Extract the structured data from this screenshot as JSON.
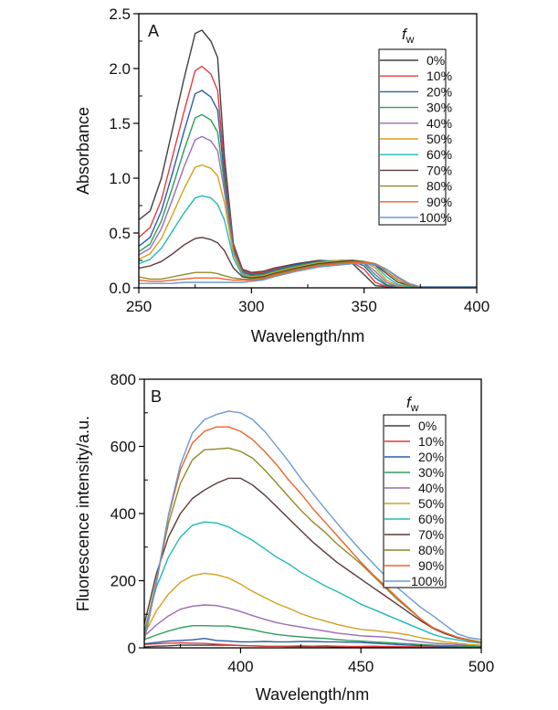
{
  "chart_data": [
    {
      "id": "A",
      "type": "line",
      "panel_label": "A",
      "xlabel": "Wavelength/nm",
      "ylabel": "Absorbance",
      "xlim": [
        250,
        400
      ],
      "ylim": [
        0.0,
        2.5
      ],
      "xticks": [
        250,
        300,
        350,
        400
      ],
      "xtick_labels": [
        "250",
        "300",
        "350",
        "400"
      ],
      "yticks": [
        0.0,
        0.5,
        1.0,
        1.5,
        2.0,
        2.5
      ],
      "ytick_labels": [
        "0.0",
        "0.5",
        "1.0",
        "1.5",
        "2.0",
        "2.5"
      ],
      "grid": false,
      "legend": {
        "title": "f",
        "title_sub": "w",
        "placement": "top-right"
      },
      "x": [
        250,
        255,
        260,
        265,
        270,
        275,
        278,
        282,
        285,
        288,
        292,
        296,
        300,
        305,
        310,
        320,
        330,
        340,
        345,
        350,
        355,
        360,
        365,
        370,
        375,
        380,
        390,
        400
      ],
      "series": [
        {
          "name": "0%",
          "color": "#404040",
          "values": [
            0.62,
            0.7,
            1.0,
            1.45,
            1.9,
            2.32,
            2.35,
            2.25,
            2.1,
            1.2,
            0.4,
            0.17,
            0.14,
            0.15,
            0.18,
            0.22,
            0.25,
            0.24,
            0.22,
            0.12,
            0.02,
            0.01,
            0.01,
            0.01,
            0.01,
            0.01,
            0.01,
            0.01
          ]
        },
        {
          "name": "10%",
          "color": "#e03c3c",
          "values": [
            0.46,
            0.55,
            0.8,
            1.2,
            1.6,
            1.98,
            2.02,
            1.95,
            1.8,
            1.1,
            0.38,
            0.16,
            0.13,
            0.14,
            0.17,
            0.21,
            0.24,
            0.24,
            0.23,
            0.17,
            0.05,
            0.01,
            0.01,
            0.01,
            0.01,
            0.01,
            0.01,
            0.01
          ]
        },
        {
          "name": "20%",
          "color": "#2f5fa8",
          "values": [
            0.38,
            0.46,
            0.7,
            1.05,
            1.42,
            1.77,
            1.8,
            1.74,
            1.62,
            1.02,
            0.36,
            0.15,
            0.12,
            0.13,
            0.16,
            0.21,
            0.24,
            0.25,
            0.24,
            0.2,
            0.09,
            0.02,
            0.01,
            0.01,
            0.01,
            0.01,
            0.01,
            0.01
          ]
        },
        {
          "name": "30%",
          "color": "#2e9e5a",
          "values": [
            0.33,
            0.4,
            0.61,
            0.92,
            1.25,
            1.55,
            1.58,
            1.53,
            1.42,
            0.95,
            0.34,
            0.14,
            0.11,
            0.12,
            0.15,
            0.2,
            0.24,
            0.25,
            0.25,
            0.22,
            0.12,
            0.03,
            0.01,
            0.01,
            0.01,
            0.01,
            0.01,
            0.01
          ]
        },
        {
          "name": "40%",
          "color": "#9b6bb5",
          "values": [
            0.3,
            0.36,
            0.54,
            0.81,
            1.1,
            1.35,
            1.38,
            1.34,
            1.25,
            0.88,
            0.33,
            0.13,
            0.1,
            0.11,
            0.14,
            0.19,
            0.23,
            0.25,
            0.25,
            0.23,
            0.15,
            0.05,
            0.01,
            0.01,
            0.01,
            0.01,
            0.01,
            0.01
          ]
        },
        {
          "name": "50%",
          "color": "#d4a01e",
          "values": [
            0.26,
            0.31,
            0.45,
            0.67,
            0.9,
            1.1,
            1.12,
            1.09,
            1.02,
            0.78,
            0.31,
            0.12,
            0.1,
            0.11,
            0.14,
            0.19,
            0.23,
            0.25,
            0.25,
            0.24,
            0.18,
            0.07,
            0.02,
            0.01,
            0.01,
            0.01,
            0.01,
            0.01
          ]
        },
        {
          "name": "60%",
          "color": "#22b8b8",
          "values": [
            0.22,
            0.26,
            0.36,
            0.52,
            0.68,
            0.82,
            0.84,
            0.82,
            0.76,
            0.62,
            0.27,
            0.11,
            0.09,
            0.1,
            0.13,
            0.18,
            0.22,
            0.24,
            0.25,
            0.24,
            0.2,
            0.1,
            0.03,
            0.01,
            0.01,
            0.01,
            0.01,
            0.01
          ]
        },
        {
          "name": "70%",
          "color": "#5a3a3a",
          "values": [
            0.18,
            0.2,
            0.24,
            0.31,
            0.39,
            0.45,
            0.46,
            0.44,
            0.41,
            0.34,
            0.18,
            0.1,
            0.09,
            0.1,
            0.13,
            0.18,
            0.22,
            0.24,
            0.25,
            0.24,
            0.21,
            0.13,
            0.05,
            0.02,
            0.01,
            0.01,
            0.01,
            0.01
          ]
        },
        {
          "name": "80%",
          "color": "#8c8c2a",
          "values": [
            0.1,
            0.08,
            0.08,
            0.1,
            0.12,
            0.14,
            0.14,
            0.14,
            0.13,
            0.11,
            0.09,
            0.08,
            0.08,
            0.09,
            0.12,
            0.17,
            0.21,
            0.23,
            0.24,
            0.24,
            0.22,
            0.15,
            0.07,
            0.02,
            0.01,
            0.01,
            0.01,
            0.01
          ]
        },
        {
          "name": "90%",
          "color": "#f0622a",
          "values": [
            0.07,
            0.06,
            0.06,
            0.07,
            0.08,
            0.09,
            0.09,
            0.09,
            0.09,
            0.08,
            0.07,
            0.07,
            0.07,
            0.08,
            0.11,
            0.16,
            0.2,
            0.22,
            0.23,
            0.23,
            0.22,
            0.17,
            0.09,
            0.03,
            0.01,
            0.01,
            0.01,
            0.01
          ]
        },
        {
          "name": "100%",
          "color": "#6a9ad0",
          "values": [
            0.04,
            0.04,
            0.04,
            0.04,
            0.05,
            0.05,
            0.05,
            0.05,
            0.05,
            0.05,
            0.05,
            0.05,
            0.06,
            0.07,
            0.1,
            0.15,
            0.19,
            0.21,
            0.22,
            0.22,
            0.21,
            0.17,
            0.1,
            0.04,
            0.01,
            0.01,
            0.01,
            0.01
          ]
        }
      ]
    },
    {
      "id": "B",
      "type": "line",
      "panel_label": "B",
      "xlabel": "Wavelength/nm",
      "ylabel": "Fluorescence intensity/a.u.",
      "xlim": [
        360,
        500
      ],
      "ylim": [
        0,
        800
      ],
      "xticks": [
        400,
        450,
        500
      ],
      "xtick_labels": [
        "400",
        "450",
        "500"
      ],
      "xminor": [
        375,
        425,
        475
      ],
      "yticks": [
        0,
        200,
        400,
        600,
        800
      ],
      "ytick_labels": [
        "0",
        "200",
        "400",
        "600",
        "800"
      ],
      "grid": false,
      "legend": {
        "title": "f",
        "title_sub": "w",
        "placement": "top-right"
      },
      "x": [
        360,
        365,
        370,
        375,
        380,
        385,
        390,
        395,
        400,
        405,
        410,
        415,
        420,
        425,
        430,
        435,
        440,
        445,
        450,
        455,
        460,
        465,
        470,
        475,
        480,
        485,
        490,
        495,
        500
      ],
      "series": [
        {
          "name": "0%",
          "color": "#404040",
          "values": [
            3,
            5,
            6,
            8,
            8,
            8,
            8,
            8,
            7,
            6,
            5,
            5,
            4,
            4,
            4,
            4,
            3,
            3,
            3,
            3,
            3,
            3,
            3,
            3,
            2,
            2,
            2,
            2,
            2
          ]
        },
        {
          "name": "10%",
          "color": "#e03c3c",
          "values": [
            10,
            12,
            14,
            15,
            14,
            13,
            11,
            9,
            7,
            6,
            5,
            5,
            5,
            6,
            5,
            6,
            5,
            4,
            4,
            5,
            4,
            4,
            3,
            3,
            3,
            3,
            3,
            3,
            3
          ]
        },
        {
          "name": "20%",
          "color": "#2f5fa8",
          "values": [
            12,
            16,
            20,
            22,
            24,
            28,
            22,
            20,
            18,
            18,
            19,
            18,
            18,
            19,
            19,
            18,
            18,
            17,
            16,
            14,
            12,
            10,
            8,
            7,
            6,
            5,
            5,
            4,
            4
          ]
        },
        {
          "name": "30%",
          "color": "#2e9e5a",
          "values": [
            25,
            38,
            50,
            60,
            66,
            66,
            65,
            65,
            60,
            54,
            46,
            40,
            36,
            33,
            30,
            28,
            25,
            22,
            20,
            18,
            16,
            14,
            12,
            10,
            8,
            7,
            6,
            5,
            5
          ]
        },
        {
          "name": "40%",
          "color": "#9b6bb5",
          "values": [
            35,
            68,
            95,
            115,
            124,
            128,
            126,
            118,
            108,
            96,
            85,
            75,
            68,
            62,
            56,
            50,
            44,
            40,
            36,
            34,
            32,
            28,
            22,
            18,
            14,
            12,
            10,
            8,
            7
          ]
        },
        {
          "name": "50%",
          "color": "#d4a01e",
          "values": [
            40,
            110,
            160,
            195,
            215,
            222,
            218,
            208,
            190,
            168,
            150,
            132,
            118,
            102,
            90,
            80,
            70,
            62,
            55,
            52,
            48,
            44,
            38,
            30,
            24,
            18,
            14,
            10,
            8
          ]
        },
        {
          "name": "60%",
          "color": "#22b8b8",
          "values": [
            50,
            180,
            270,
            330,
            365,
            375,
            372,
            360,
            340,
            320,
            295,
            270,
            250,
            225,
            205,
            185,
            168,
            150,
            130,
            115,
            100,
            85,
            70,
            55,
            40,
            30,
            24,
            18,
            14
          ]
        },
        {
          "name": "70%",
          "color": "#5a3a3a",
          "values": [
            70,
            220,
            330,
            400,
            445,
            470,
            490,
            505,
            505,
            485,
            455,
            420,
            385,
            350,
            315,
            285,
            255,
            230,
            205,
            180,
            155,
            130,
            105,
            80,
            58,
            42,
            30,
            22,
            16
          ]
        },
        {
          "name": "80%",
          "color": "#8c8c2a",
          "values": [
            40,
            200,
            370,
            490,
            560,
            590,
            592,
            595,
            585,
            565,
            530,
            490,
            450,
            410,
            375,
            345,
            310,
            280,
            250,
            215,
            180,
            145,
            115,
            85,
            60,
            45,
            32,
            24,
            18
          ]
        },
        {
          "name": "90%",
          "color": "#f0622a",
          "values": [
            20,
            190,
            390,
            530,
            610,
            645,
            658,
            658,
            645,
            620,
            585,
            545,
            500,
            460,
            415,
            375,
            335,
            295,
            255,
            218,
            185,
            150,
            118,
            85,
            60,
            45,
            32,
            22,
            16
          ]
        },
        {
          "name": "100%",
          "color": "#6a9ad0",
          "values": [
            25,
            195,
            395,
            545,
            640,
            680,
            695,
            705,
            700,
            680,
            645,
            600,
            555,
            505,
            460,
            415,
            372,
            330,
            290,
            252,
            215,
            180,
            150,
            120,
            95,
            68,
            42,
            30,
            25
          ]
        }
      ]
    }
  ]
}
